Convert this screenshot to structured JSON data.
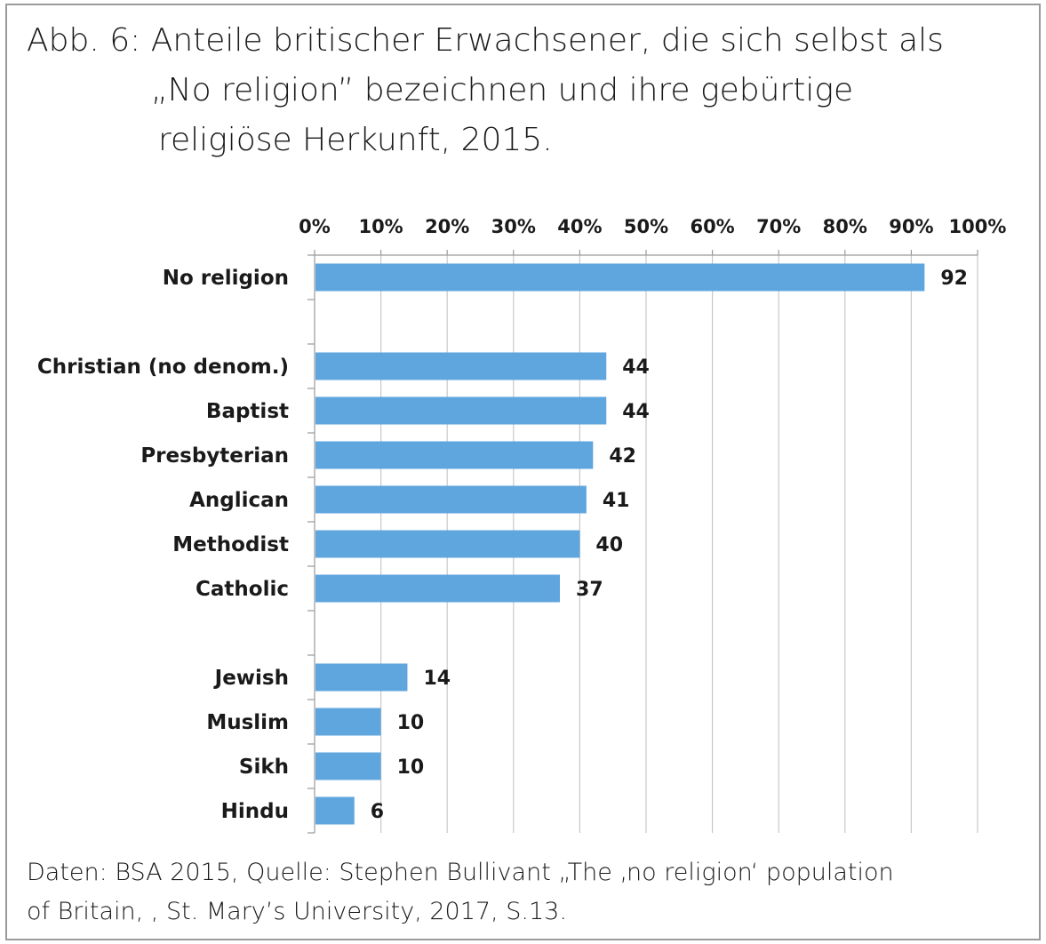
{
  "figure": {
    "title_lines": [
      "Abb. 6: Anteile britischer Erwachsener, die sich selbst als",
      "„No religion” bezeichnen und ihre gebürtige",
      "religiöse Herkunft, 2015."
    ],
    "source_lines": [
      "Daten: BSA 2015, Quelle: Stephen Bullivant „The ‚no religion‘ population",
      "of Britain, , St. Mary’s University, 2017, S.13."
    ]
  },
  "chart_data": {
    "type": "bar",
    "orientation": "horizontal",
    "title": "Abb. 6: Anteile britischer Erwachsener, die sich selbst als „No religion” bezeichnen und ihre gebürtige religiöse Herkunft, 2015.",
    "xlabel": "",
    "ylabel": "",
    "xlim": [
      0,
      100
    ],
    "grid": true,
    "axis_position": "top",
    "ticks": [
      "0%",
      "10%",
      "20%",
      "30%",
      "40%",
      "50%",
      "60%",
      "70%",
      "80%",
      "90%",
      "100%"
    ],
    "bar_color": "#5fa6df",
    "categories": [
      "No religion",
      "Christian (no denom.)",
      "Baptist",
      "Presbyterian",
      "Anglican",
      "Methodist",
      "Catholic",
      "Jewish",
      "Muslim",
      "Sikh",
      "Hindu"
    ],
    "values": [
      92,
      44,
      44,
      42,
      41,
      40,
      37,
      14,
      10,
      10,
      6
    ],
    "slots": [
      0,
      2,
      3,
      4,
      5,
      6,
      7,
      9,
      10,
      11,
      12
    ],
    "slot_count": 13
  }
}
